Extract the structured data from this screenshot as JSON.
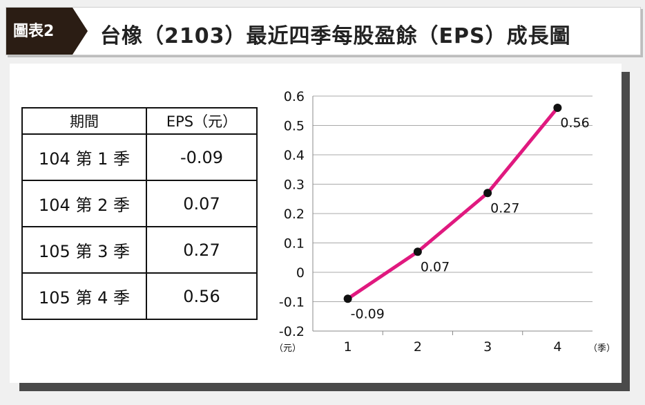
{
  "header": {
    "badge": "圖表2",
    "title": "台橡（2103）最近四季每股盈餘（EPS）成長圖"
  },
  "table": {
    "headers": [
      "期間",
      "EPS（元）"
    ],
    "rows": [
      {
        "period": "104 第 1 季",
        "eps": "-0.09"
      },
      {
        "period": "104 第 2 季",
        "eps": "0.07"
      },
      {
        "period": "105 第 3 季",
        "eps": "0.27"
      },
      {
        "period": "105 第 4 季",
        "eps": "0.56"
      }
    ]
  },
  "colors": {
    "line": "#e0197f",
    "marker": "#111111",
    "badge": "#2b1d14"
  },
  "chart_data": {
    "type": "line",
    "x": [
      1,
      2,
      3,
      4
    ],
    "series": [
      {
        "values": [
          -0.09,
          0.07,
          0.27,
          0.56
        ]
      }
    ],
    "data_labels": [
      "-0.09",
      "0.07",
      "0.27",
      "0.56"
    ],
    "x_ticks": [
      "1",
      "2",
      "3",
      "4"
    ],
    "y_ticks": [
      "0.6",
      "0.5",
      "0.4",
      "0.3",
      "0.2",
      "0.1",
      "0",
      "-0.1",
      "-0.2"
    ],
    "y_tick_values": [
      0.6,
      0.5,
      0.4,
      0.3,
      0.2,
      0.1,
      0,
      -0.1,
      -0.2
    ],
    "ylim": [
      -0.2,
      0.6
    ],
    "xlim": [
      0.5,
      4.5
    ],
    "ylabel": "（元）",
    "xlabel": "（季）",
    "grid": true
  }
}
